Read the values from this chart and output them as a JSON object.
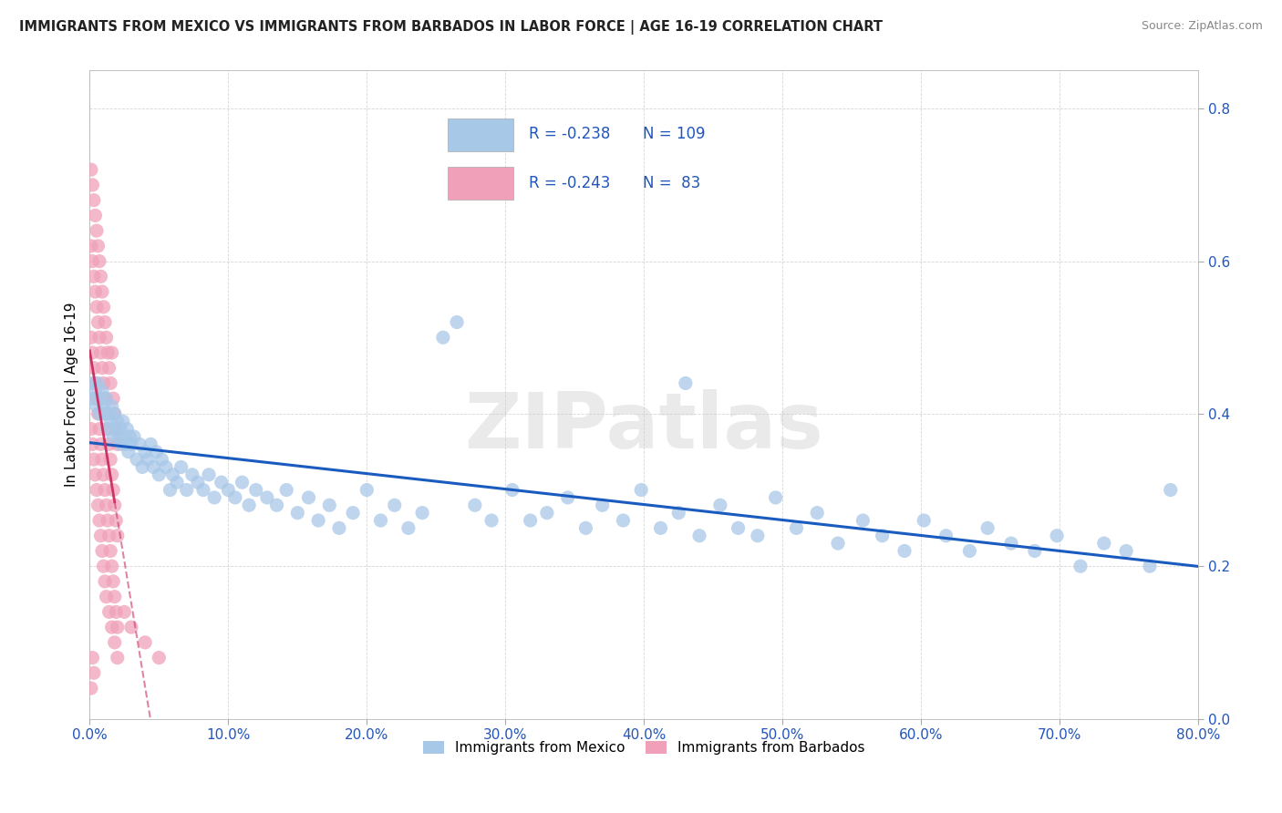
{
  "title": "IMMIGRANTS FROM MEXICO VS IMMIGRANTS FROM BARBADOS IN LABOR FORCE | AGE 16-19 CORRELATION CHART",
  "source": "Source: ZipAtlas.com",
  "ylabel": "In Labor Force | Age 16-19",
  "xmin": 0.0,
  "xmax": 0.8,
  "ymin": 0.0,
  "ymax": 0.85,
  "xticks": [
    0.0,
    0.1,
    0.2,
    0.3,
    0.4,
    0.5,
    0.6,
    0.7,
    0.8
  ],
  "yticks": [
    0.0,
    0.2,
    0.4,
    0.6,
    0.8
  ],
  "mexico_R": -0.238,
  "mexico_N": 109,
  "barbados_R": -0.243,
  "barbados_N": 83,
  "mexico_color": "#a8c8e8",
  "barbados_color": "#f0a0b8",
  "mexico_line_color": "#1a5bbf",
  "barbados_line_color": "#cc3366",
  "watermark": "ZIPatlas",
  "mexico_scatter_x": [
    0.002,
    0.003,
    0.004,
    0.005,
    0.006,
    0.007,
    0.008,
    0.009,
    0.01,
    0.011,
    0.012,
    0.013,
    0.014,
    0.015,
    0.016,
    0.017,
    0.018,
    0.019,
    0.02,
    0.021,
    0.022,
    0.023,
    0.024,
    0.025,
    0.026,
    0.027,
    0.028,
    0.029,
    0.03,
    0.032,
    0.034,
    0.036,
    0.038,
    0.04,
    0.042,
    0.044,
    0.046,
    0.048,
    0.05,
    0.052,
    0.055,
    0.058,
    0.06,
    0.063,
    0.066,
    0.07,
    0.074,
    0.078,
    0.082,
    0.086,
    0.09,
    0.095,
    0.1,
    0.105,
    0.11,
    0.115,
    0.12,
    0.128,
    0.135,
    0.142,
    0.15,
    0.158,
    0.165,
    0.173,
    0.18,
    0.19,
    0.2,
    0.21,
    0.22,
    0.23,
    0.24,
    0.255,
    0.265,
    0.278,
    0.29,
    0.305,
    0.318,
    0.33,
    0.345,
    0.358,
    0.37,
    0.385,
    0.398,
    0.412,
    0.425,
    0.44,
    0.455,
    0.468,
    0.482,
    0.495,
    0.51,
    0.525,
    0.54,
    0.558,
    0.572,
    0.588,
    0.602,
    0.618,
    0.635,
    0.648,
    0.665,
    0.682,
    0.698,
    0.715,
    0.732,
    0.748,
    0.765,
    0.78,
    0.43
  ],
  "mexico_scatter_y": [
    0.44,
    0.42,
    0.43,
    0.41,
    0.44,
    0.4,
    0.42,
    0.43,
    0.41,
    0.4,
    0.42,
    0.38,
    0.4,
    0.39,
    0.41,
    0.37,
    0.4,
    0.38,
    0.39,
    0.37,
    0.38,
    0.36,
    0.39,
    0.37,
    0.36,
    0.38,
    0.35,
    0.37,
    0.36,
    0.37,
    0.34,
    0.36,
    0.33,
    0.35,
    0.34,
    0.36,
    0.33,
    0.35,
    0.32,
    0.34,
    0.33,
    0.3,
    0.32,
    0.31,
    0.33,
    0.3,
    0.32,
    0.31,
    0.3,
    0.32,
    0.29,
    0.31,
    0.3,
    0.29,
    0.31,
    0.28,
    0.3,
    0.29,
    0.28,
    0.3,
    0.27,
    0.29,
    0.26,
    0.28,
    0.25,
    0.27,
    0.3,
    0.26,
    0.28,
    0.25,
    0.27,
    0.5,
    0.52,
    0.28,
    0.26,
    0.3,
    0.26,
    0.27,
    0.29,
    0.25,
    0.28,
    0.26,
    0.3,
    0.25,
    0.27,
    0.24,
    0.28,
    0.25,
    0.24,
    0.29,
    0.25,
    0.27,
    0.23,
    0.26,
    0.24,
    0.22,
    0.26,
    0.24,
    0.22,
    0.25,
    0.23,
    0.22,
    0.24,
    0.2,
    0.23,
    0.22,
    0.2,
    0.3,
    0.44
  ],
  "barbados_scatter_x": [
    0.001,
    0.002,
    0.003,
    0.004,
    0.005,
    0.006,
    0.007,
    0.008,
    0.009,
    0.01,
    0.011,
    0.012,
    0.013,
    0.014,
    0.015,
    0.016,
    0.017,
    0.018,
    0.019,
    0.02,
    0.001,
    0.002,
    0.003,
    0.004,
    0.005,
    0.006,
    0.007,
    0.008,
    0.009,
    0.01,
    0.011,
    0.012,
    0.013,
    0.014,
    0.015,
    0.016,
    0.017,
    0.018,
    0.019,
    0.02,
    0.001,
    0.002,
    0.003,
    0.004,
    0.005,
    0.006,
    0.007,
    0.008,
    0.009,
    0.01,
    0.011,
    0.012,
    0.013,
    0.014,
    0.015,
    0.016,
    0.017,
    0.018,
    0.019,
    0.02,
    0.001,
    0.002,
    0.003,
    0.004,
    0.005,
    0.006,
    0.007,
    0.008,
    0.009,
    0.01,
    0.011,
    0.012,
    0.014,
    0.016,
    0.018,
    0.02,
    0.025,
    0.03,
    0.04,
    0.05,
    0.002,
    0.003,
    0.001
  ],
  "barbados_scatter_y": [
    0.72,
    0.7,
    0.68,
    0.66,
    0.64,
    0.62,
    0.6,
    0.58,
    0.56,
    0.54,
    0.52,
    0.5,
    0.48,
    0.46,
    0.44,
    0.48,
    0.42,
    0.4,
    0.38,
    0.36,
    0.62,
    0.6,
    0.58,
    0.56,
    0.54,
    0.52,
    0.5,
    0.48,
    0.46,
    0.44,
    0.42,
    0.4,
    0.38,
    0.36,
    0.34,
    0.32,
    0.3,
    0.28,
    0.26,
    0.24,
    0.5,
    0.48,
    0.46,
    0.44,
    0.42,
    0.4,
    0.38,
    0.36,
    0.34,
    0.32,
    0.3,
    0.28,
    0.26,
    0.24,
    0.22,
    0.2,
    0.18,
    0.16,
    0.14,
    0.12,
    0.38,
    0.36,
    0.34,
    0.32,
    0.3,
    0.28,
    0.26,
    0.24,
    0.22,
    0.2,
    0.18,
    0.16,
    0.14,
    0.12,
    0.1,
    0.08,
    0.14,
    0.12,
    0.1,
    0.08,
    0.08,
    0.06,
    0.04
  ]
}
